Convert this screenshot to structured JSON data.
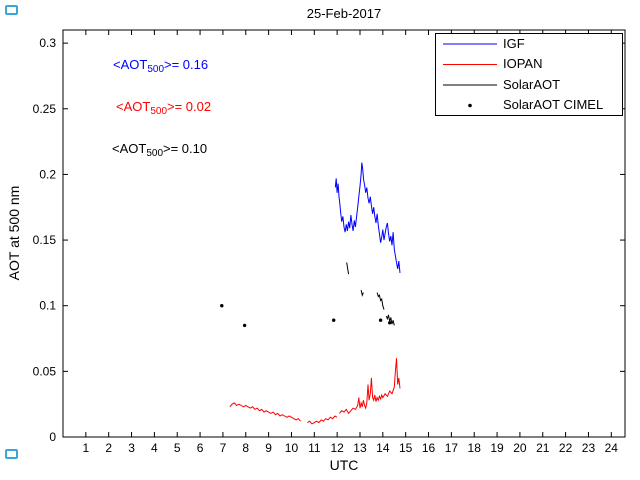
{
  "figure": {
    "title": "25-Feb-2017",
    "xlabel": "UTC",
    "ylabel": "AOT at 500 nm",
    "corner_mark_color": "#3aa7dc"
  },
  "legend": {
    "items": [
      {
        "label": "IGF",
        "color": "#0000ff",
        "marker": "line"
      },
      {
        "label": "IOPAN",
        "color": "#ff0000",
        "marker": "line"
      },
      {
        "label": "SolarAOT",
        "color": "#000000",
        "marker": "line"
      },
      {
        "label": "SolarAOT CIMEL",
        "color": "#000000",
        "marker": "dot"
      }
    ]
  },
  "annotations": [
    {
      "pre": "<AOT",
      "sub": "500",
      "post": ">= 0.16",
      "color": "#0000ff"
    },
    {
      "pre": "<AOT",
      "sub": "500",
      "post": ">= 0.02",
      "color": "#ff0000"
    },
    {
      "pre": "<AOT",
      "sub": "500",
      "post": ">= 0.10",
      "color": "#000000"
    }
  ],
  "chart_data": {
    "type": "line",
    "title": "25-Feb-2017",
    "xlabel": "UTC",
    "ylabel": "AOT at 500 nm",
    "xlim": [
      0,
      24.6
    ],
    "ylim": [
      0,
      0.31
    ],
    "grid": false,
    "legend_position": "top-right",
    "xticks": [
      1,
      2,
      3,
      4,
      5,
      6,
      7,
      8,
      9,
      10,
      11,
      12,
      13,
      14,
      15,
      16,
      17,
      18,
      19,
      20,
      21,
      22,
      23,
      24
    ],
    "xtick_labels": [
      "1",
      "2",
      "3",
      "4",
      "5",
      "6",
      "7",
      "8",
      "9",
      "10",
      "11",
      "12",
      "13",
      "14",
      "15",
      "16",
      "17",
      "18",
      "19",
      "20",
      "21",
      "22",
      "23",
      "24"
    ],
    "yticks": [
      0,
      0.05,
      0.1,
      0.15,
      0.2,
      0.25,
      0.3
    ],
    "ytick_labels": [
      "0",
      "0.05",
      "0.1",
      "0.15",
      "0.2",
      "0.25",
      "0.3"
    ],
    "series": [
      {
        "name": "IGF",
        "color": "#0000ff",
        "mean_aot_500": 0.16,
        "segments": [
          [
            [
              11.92,
              0.19
            ],
            [
              11.96,
              0.197
            ],
            [
              12.0,
              0.186
            ],
            [
              12.04,
              0.193
            ],
            [
              12.08,
              0.183
            ],
            [
              12.12,
              0.177
            ],
            [
              12.16,
              0.17
            ],
            [
              12.2,
              0.164
            ],
            [
              12.25,
              0.168
            ],
            [
              12.3,
              0.16
            ],
            [
              12.35,
              0.156
            ],
            [
              12.4,
              0.162
            ],
            [
              12.45,
              0.157
            ],
            [
              12.5,
              0.164
            ],
            [
              12.55,
              0.159
            ],
            [
              12.6,
              0.169
            ],
            [
              12.65,
              0.162
            ],
            [
              12.7,
              0.157
            ],
            [
              12.75,
              0.165
            ],
            [
              12.8,
              0.16
            ],
            [
              12.85,
              0.168
            ],
            [
              12.9,
              0.175
            ],
            [
              12.95,
              0.183
            ],
            [
              13.0,
              0.191
            ],
            [
              13.05,
              0.2
            ],
            [
              13.08,
              0.209
            ],
            [
              13.12,
              0.204
            ],
            [
              13.16,
              0.196
            ],
            [
              13.2,
              0.192
            ],
            [
              13.25,
              0.186
            ],
            [
              13.3,
              0.19
            ],
            [
              13.35,
              0.182
            ],
            [
              13.4,
              0.178
            ],
            [
              13.45,
              0.183
            ],
            [
              13.5,
              0.176
            ],
            [
              13.55,
              0.17
            ],
            [
              13.6,
              0.175
            ],
            [
              13.65,
              0.168
            ],
            [
              13.7,
              0.163
            ],
            [
              13.75,
              0.17
            ],
            [
              13.8,
              0.161
            ],
            [
              13.85,
              0.155
            ],
            [
              13.9,
              0.148
            ],
            [
              13.95,
              0.152
            ],
            [
              14.0,
              0.158
            ],
            [
              14.05,
              0.15
            ],
            [
              14.1,
              0.155
            ],
            [
              14.15,
              0.16
            ],
            [
              14.2,
              0.163
            ],
            [
              14.25,
              0.155
            ],
            [
              14.3,
              0.149
            ],
            [
              14.35,
              0.153
            ],
            [
              14.4,
              0.146
            ],
            [
              14.45,
              0.156
            ],
            [
              14.5,
              0.143
            ],
            [
              14.55,
              0.138
            ],
            [
              14.6,
              0.133
            ],
            [
              14.65,
              0.128
            ],
            [
              14.7,
              0.134
            ],
            [
              14.75,
              0.125
            ]
          ]
        ]
      },
      {
        "name": "IOPAN",
        "color": "#ff0000",
        "mean_aot_500": 0.02,
        "segments": [
          [
            [
              7.3,
              0.023
            ],
            [
              7.4,
              0.025
            ],
            [
              7.5,
              0.026
            ],
            [
              7.6,
              0.024
            ],
            [
              7.7,
              0.025
            ],
            [
              7.8,
              0.024
            ],
            [
              7.9,
              0.023
            ],
            [
              8.0,
              0.024
            ],
            [
              8.1,
              0.023
            ],
            [
              8.2,
              0.022
            ],
            [
              8.3,
              0.023
            ],
            [
              8.4,
              0.021
            ],
            [
              8.5,
              0.022
            ],
            [
              8.6,
              0.02
            ],
            [
              8.7,
              0.021
            ],
            [
              8.8,
              0.019
            ],
            [
              8.9,
              0.02
            ],
            [
              9.0,
              0.019
            ],
            [
              9.1,
              0.018
            ],
            [
              9.2,
              0.019
            ],
            [
              9.3,
              0.017
            ],
            [
              9.4,
              0.018
            ],
            [
              9.5,
              0.016
            ],
            [
              9.6,
              0.017
            ],
            [
              9.7,
              0.016
            ],
            [
              9.8,
              0.015
            ],
            [
              9.9,
              0.016
            ],
            [
              10.0,
              0.015
            ],
            [
              10.1,
              0.014
            ],
            [
              10.2,
              0.013
            ],
            [
              10.3,
              0.014
            ],
            [
              10.4,
              0.012
            ]
          ],
          [
            [
              10.7,
              0.011
            ],
            [
              10.8,
              0.012
            ],
            [
              10.9,
              0.01
            ],
            [
              11.0,
              0.011
            ],
            [
              11.1,
              0.012
            ],
            [
              11.2,
              0.011
            ],
            [
              11.3,
              0.013
            ],
            [
              11.4,
              0.012
            ],
            [
              11.5,
              0.014
            ],
            [
              11.6,
              0.013
            ],
            [
              11.7,
              0.015
            ],
            [
              11.8,
              0.014
            ],
            [
              11.9,
              0.016
            ],
            [
              12.0,
              0.015
            ]
          ],
          [
            [
              12.1,
              0.018
            ],
            [
              12.2,
              0.02
            ],
            [
              12.3,
              0.019
            ],
            [
              12.4,
              0.021
            ],
            [
              12.5,
              0.018
            ],
            [
              12.6,
              0.02
            ],
            [
              12.7,
              0.022
            ],
            [
              12.8,
              0.021
            ],
            [
              12.9,
              0.024
            ],
            [
              12.95,
              0.03
            ],
            [
              13.0,
              0.022
            ],
            [
              13.05,
              0.026
            ],
            [
              13.1,
              0.023
            ],
            [
              13.15,
              0.028
            ],
            [
              13.2,
              0.024
            ],
            [
              13.25,
              0.022
            ],
            [
              13.3,
              0.026
            ],
            [
              13.35,
              0.04
            ],
            [
              13.4,
              0.028
            ],
            [
              13.45,
              0.033
            ],
            [
              13.5,
              0.045
            ],
            [
              13.55,
              0.03
            ],
            [
              13.6,
              0.028
            ],
            [
              13.65,
              0.032
            ],
            [
              13.7,
              0.027
            ],
            [
              13.75,
              0.03
            ],
            [
              13.8,
              0.028
            ],
            [
              13.85,
              0.031
            ],
            [
              13.9,
              0.029
            ],
            [
              13.95,
              0.032
            ],
            [
              14.0,
              0.03
            ],
            [
              14.1,
              0.033
            ],
            [
              14.2,
              0.031
            ],
            [
              14.3,
              0.035
            ],
            [
              14.4,
              0.033
            ],
            [
              14.5,
              0.038
            ],
            [
              14.55,
              0.05
            ],
            [
              14.6,
              0.06
            ],
            [
              14.65,
              0.04
            ],
            [
              14.7,
              0.045
            ],
            [
              14.75,
              0.037
            ]
          ]
        ]
      },
      {
        "name": "SolarAOT",
        "color": "#000000",
        "mean_aot_500": 0.1,
        "segments": [
          [
            [
              12.42,
              0.133
            ],
            [
              12.46,
              0.128
            ],
            [
              12.5,
              0.124
            ]
          ],
          [
            [
              13.05,
              0.112
            ],
            [
              13.1,
              0.108
            ],
            [
              13.15,
              0.11
            ]
          ],
          [
            [
              13.75,
              0.11
            ],
            [
              13.8,
              0.107
            ],
            [
              13.85,
              0.108
            ],
            [
              13.9,
              0.104
            ],
            [
              13.95,
              0.105
            ],
            [
              14.0,
              0.1
            ],
            [
              14.05,
              0.097
            ]
          ],
          [
            [
              14.15,
              0.092
            ],
            [
              14.2,
              0.09
            ],
            [
              14.25,
              0.093
            ],
            [
              14.3,
              0.088
            ],
            [
              14.35,
              0.091
            ],
            [
              14.4,
              0.086
            ],
            [
              14.45,
              0.089
            ],
            [
              14.5,
              0.085
            ]
          ]
        ]
      }
    ],
    "scatter": [
      {
        "name": "SolarAOT CIMEL",
        "color": "#000000",
        "points": [
          [
            6.95,
            0.1
          ],
          [
            7.95,
            0.085
          ],
          [
            11.85,
            0.089
          ],
          [
            13.9,
            0.089
          ],
          [
            14.3,
            0.087
          ]
        ]
      }
    ]
  }
}
